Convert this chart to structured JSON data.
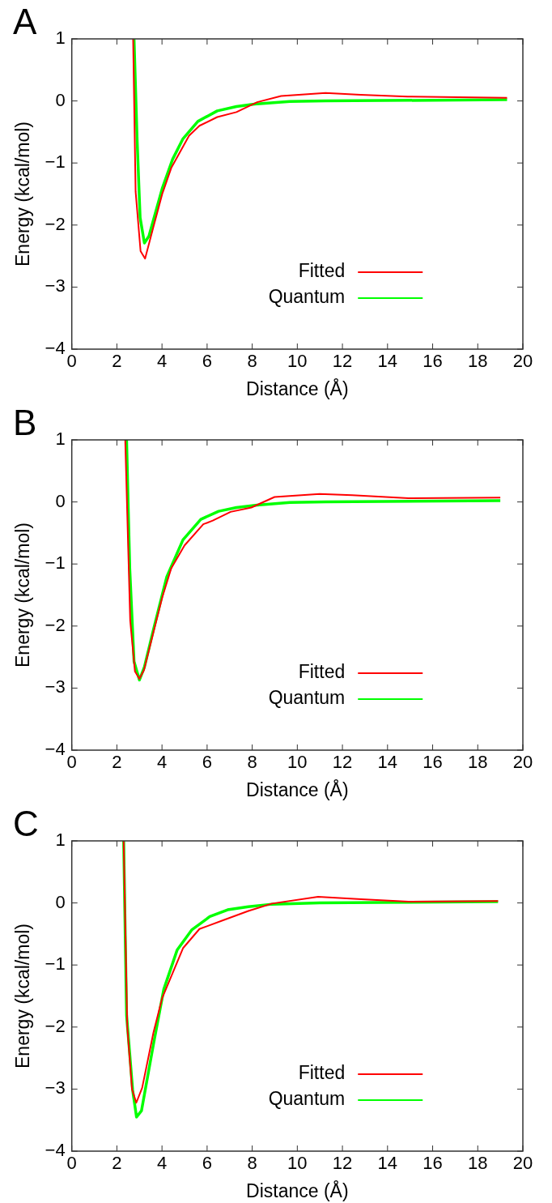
{
  "chart_data": [
    {
      "type": "line",
      "title": "A",
      "xlabel": "Distance (Å)",
      "ylabel": "Energy (kcal/mol)",
      "xlim": [
        0,
        20
      ],
      "xticks": [
        0,
        2,
        4,
        6,
        8,
        10,
        12,
        14,
        16,
        18,
        20
      ],
      "ylim": [
        -4,
        1
      ],
      "yticks": [
        -4,
        -3,
        -2,
        -1,
        0,
        1
      ],
      "grid": false,
      "legend": "bottom",
      "marker": "none",
      "line_style": "solid",
      "series": [
        {
          "name": "Fitted",
          "color": "#ff0000",
          "x": [
            2.72,
            2.83,
            3.05,
            3.25,
            3.62,
            4.01,
            4.41,
            5.2,
            5.66,
            6.45,
            7.3,
            8.22,
            9.28,
            11.25,
            12.8,
            14.9,
            19.3
          ],
          "values": [
            1,
            -1.46,
            -2.42,
            -2.54,
            -2.03,
            -1.5,
            -1.08,
            -0.56,
            -0.4,
            -0.26,
            -0.18,
            -0.02,
            0.08,
            0.13,
            0.1,
            0.07,
            0.05
          ]
        },
        {
          "name": "Quantum",
          "color": "#00ff00",
          "x": [
            2.76,
            2.9,
            3.03,
            3.22,
            3.42,
            4.01,
            4.47,
            4.93,
            5.59,
            6.45,
            7.3,
            8.1,
            9.67,
            11.25,
            19.3
          ],
          "values": [
            1,
            -0.66,
            -1.88,
            -2.29,
            -2.18,
            -1.41,
            -0.94,
            -0.61,
            -0.33,
            -0.16,
            -0.09,
            -0.05,
            -0.01,
            0,
            0.02
          ]
        }
      ]
    },
    {
      "type": "line",
      "title": "B",
      "xlabel": "Distance (Å)",
      "ylabel": "Energy (kcal/mol)",
      "xlim": [
        0,
        20
      ],
      "xticks": [
        0,
        2,
        4,
        6,
        8,
        10,
        12,
        14,
        16,
        18,
        20
      ],
      "ylim": [
        -4,
        1
      ],
      "yticks": [
        -4,
        -3,
        -2,
        -1,
        0,
        1
      ],
      "grid": false,
      "legend": "bottom",
      "marker": "none",
      "line_style": "solid",
      "series": [
        {
          "name": "Fitted",
          "color": "#ff0000",
          "x": [
            2.37,
            2.59,
            2.8,
            3.0,
            3.2,
            3.62,
            4.01,
            4.41,
            5.0,
            5.83,
            6.25,
            7.04,
            7.96,
            8.99,
            10.99,
            12.43,
            14.93,
            19.0
          ],
          "values": [
            1,
            -1.91,
            -2.73,
            -2.85,
            -2.71,
            -2.1,
            -1.54,
            -1.07,
            -0.7,
            -0.36,
            -0.3,
            -0.16,
            -0.09,
            0.08,
            0.13,
            0.11,
            0.06,
            0.07
          ]
        },
        {
          "name": "Quantum",
          "color": "#00ff00",
          "x": [
            2.43,
            2.57,
            2.76,
            3.0,
            3.22,
            3.62,
            4.21,
            4.93,
            5.72,
            6.51,
            7.3,
            8.22,
            9.67,
            11.25,
            19.0
          ],
          "values": [
            1,
            -1.07,
            -2.57,
            -2.87,
            -2.66,
            -2.06,
            -1.21,
            -0.61,
            -0.28,
            -0.15,
            -0.09,
            -0.05,
            -0.01,
            0,
            0.02
          ]
        }
      ]
    },
    {
      "type": "line",
      "title": "C",
      "xlabel": "Distance (Å)",
      "ylabel": "Energy (kcal/mol)",
      "xlim": [
        0,
        20
      ],
      "xticks": [
        0,
        2,
        4,
        6,
        8,
        10,
        12,
        14,
        16,
        18,
        20
      ],
      "ylim": [
        -4,
        1
      ],
      "yticks": [
        -4,
        -3,
        -2,
        -1,
        0,
        1
      ],
      "grid": false,
      "legend": "bottom",
      "marker": "none",
      "line_style": "solid",
      "series": [
        {
          "name": "Fitted",
          "color": "#ff0000",
          "x": [
            2.3,
            2.46,
            2.67,
            2.86,
            3.12,
            3.62,
            4.01,
            4.93,
            5.66,
            6.78,
            7.83,
            8.88,
            10.92,
            12.83,
            14.93,
            18.9
          ],
          "values": [
            1,
            -2.0,
            -3.0,
            -3.22,
            -2.98,
            -2.09,
            -1.53,
            -0.73,
            -0.42,
            -0.27,
            -0.13,
            -0.01,
            0.1,
            0.06,
            0.02,
            0.03
          ]
        },
        {
          "name": "Quantum",
          "color": "#00ff00",
          "x": [
            2.3,
            2.43,
            2.7,
            2.87,
            3.09,
            3.62,
            4.08,
            4.67,
            5.33,
            6.12,
            6.91,
            7.83,
            8.88,
            10.99,
            18.9
          ],
          "values": [
            1,
            -1.81,
            -3.02,
            -3.45,
            -3.35,
            -2.28,
            -1.39,
            -0.76,
            -0.43,
            -0.22,
            -0.11,
            -0.06,
            -0.02,
            0,
            0.02
          ]
        }
      ]
    }
  ]
}
